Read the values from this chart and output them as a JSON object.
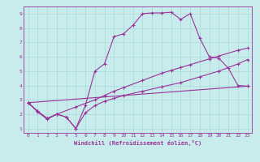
{
  "xlabel": "Windchill (Refroidissement éolien,°C)",
  "xlim": [
    -0.5,
    23.5
  ],
  "ylim": [
    0.7,
    9.5
  ],
  "xticks": [
    0,
    1,
    2,
    3,
    4,
    5,
    6,
    7,
    8,
    9,
    10,
    11,
    12,
    13,
    14,
    15,
    16,
    17,
    18,
    19,
    20,
    21,
    22,
    23
  ],
  "yticks": [
    1,
    2,
    3,
    4,
    5,
    6,
    7,
    8,
    9
  ],
  "bg_color": "#c8ecec",
  "grid_color": "#a8d8d8",
  "line_color": "#993399",
  "line1_x": [
    0,
    1,
    2,
    3,
    4,
    5,
    6,
    7,
    8,
    9,
    10,
    11,
    12,
    13,
    14,
    15,
    16,
    17,
    18,
    19,
    20,
    21,
    22,
    23
  ],
  "line1_y": [
    2.8,
    2.2,
    1.7,
    2.0,
    1.8,
    1.0,
    2.6,
    5.0,
    5.5,
    7.4,
    7.6,
    8.2,
    9.0,
    9.05,
    9.05,
    9.1,
    8.6,
    9.0,
    7.3,
    6.0,
    5.9,
    5.2,
    4.0,
    3.95
  ],
  "line2_x": [
    0,
    1,
    2,
    3,
    5,
    7,
    8,
    9,
    10,
    12,
    14,
    15,
    16,
    17,
    19,
    20,
    22,
    23
  ],
  "line2_y": [
    2.8,
    2.15,
    1.65,
    2.0,
    2.5,
    3.0,
    3.3,
    3.6,
    3.85,
    4.35,
    4.85,
    5.05,
    5.25,
    5.45,
    5.85,
    6.05,
    6.45,
    6.6
  ],
  "line3_x": [
    0,
    23
  ],
  "line3_y": [
    2.8,
    3.95
  ],
  "line4_x": [
    0,
    1,
    2,
    3,
    4,
    5,
    6,
    7,
    8,
    9,
    10,
    12,
    14,
    16,
    18,
    20,
    22,
    23
  ],
  "line4_y": [
    2.8,
    2.2,
    1.7,
    2.0,
    1.8,
    1.0,
    2.1,
    2.6,
    2.9,
    3.1,
    3.3,
    3.6,
    3.9,
    4.2,
    4.6,
    5.0,
    5.5,
    5.8
  ]
}
